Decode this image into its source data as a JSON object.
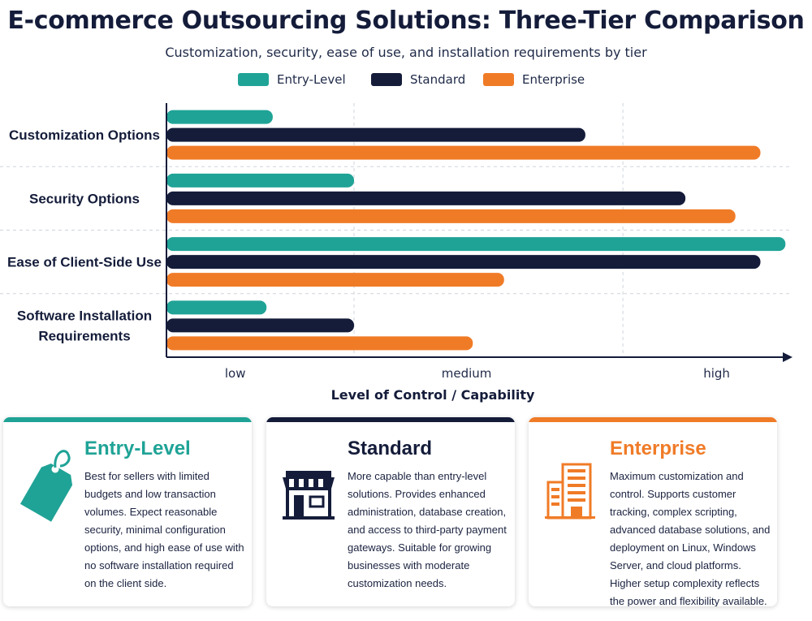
{
  "title": "E-commerce Outsourcing Solutions: Three-Tier Comparison",
  "subtitle": "Customization, security, ease of use, and installation requirements by tier",
  "colors": {
    "entry": "#1fa396",
    "standard": "#141c3a",
    "enterprise": "#f07b27"
  },
  "chart_data": {
    "type": "bar",
    "orientation": "horizontal",
    "categories": [
      "Customization Options",
      "Security Options",
      "Ease of Client-Side Use",
      "Software Installation Requirements"
    ],
    "series": [
      {
        "name": "Entry-Level",
        "color": "#1fa396",
        "values": [
          0.17,
          0.3,
          0.99,
          0.16
        ]
      },
      {
        "name": "Standard",
        "color": "#141c3a",
        "values": [
          0.67,
          0.83,
          0.95,
          0.3
        ]
      },
      {
        "name": "Enterprise",
        "color": "#f07b27",
        "values": [
          0.95,
          0.91,
          0.54,
          0.49
        ]
      }
    ],
    "xticks": [
      {
        "label": "low",
        "value": 0.11
      },
      {
        "label": "medium",
        "value": 0.48
      },
      {
        "label": "high",
        "value": 0.88
      }
    ],
    "xlim": [
      0,
      1
    ],
    "xlabel": "Level of Control / Capability",
    "ylabel": "",
    "grid": true,
    "legend_position": "top"
  },
  "cards": [
    {
      "title": "Entry-Level",
      "icon": "price-tag-icon",
      "color": "#1fa396",
      "text": "Best for sellers with limited budgets and low transaction volumes. Expect reasonable security, minimal configuration options, and high ease of use with no software installation required on the client side."
    },
    {
      "title": "Standard",
      "icon": "storefront-icon",
      "color": "#141c3a",
      "text": "More capable than entry-level solutions. Provides enhanced administration, database creation, and access to third-party payment gateways. Suitable for growing businesses with moderate customization needs."
    },
    {
      "title": "Enterprise",
      "icon": "office-building-icon",
      "color": "#f07b27",
      "text": "Maximum customization and control. Supports customer tracking, complex scripting, advanced database solutions, and deployment on Linux, Windows Server, and cloud platforms. Higher setup complexity reflects the power and flexibility available."
    }
  ]
}
